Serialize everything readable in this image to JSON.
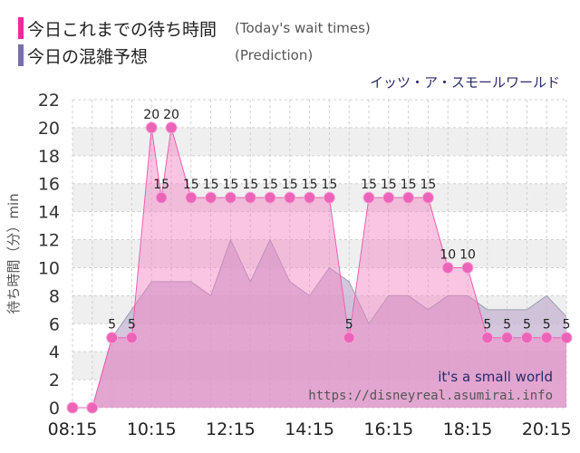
{
  "legend": {
    "today_label": "今日これまでの待ち時間",
    "today_note": "(Today's wait times)",
    "today_color": "#f0289a",
    "prediction_label": "今日の混雑予想",
    "prediction_note": "(Prediction)",
    "prediction_color": "#7a6fa8"
  },
  "attraction_name": "イッツ・ア・スモールワールド",
  "watermark": {
    "title": "it's a small world",
    "url": "https://disneyreal.asumirai.info"
  },
  "chart_data": {
    "type": "area",
    "ylabel": "待ち時間（分）min",
    "xlabel": "",
    "ylim": [
      0,
      22
    ],
    "yticks": [
      0,
      2,
      4,
      6,
      8,
      10,
      12,
      14,
      16,
      18,
      20,
      22
    ],
    "xlim": [
      "08:15",
      "20:45"
    ],
    "xtick_labels": [
      "08:15",
      "10:15",
      "12:15",
      "14:15",
      "16:15",
      "18:15",
      "20:15"
    ],
    "grid": true,
    "series": [
      {
        "name": "今日の混雑予想",
        "color": "#b9a3c9",
        "x": [
          "08:15",
          "08:45",
          "09:15",
          "09:45",
          "10:15",
          "10:45",
          "11:15",
          "11:45",
          "12:15",
          "12:45",
          "13:15",
          "13:45",
          "14:15",
          "14:45",
          "15:15",
          "15:45",
          "16:15",
          "16:45",
          "17:15",
          "17:45",
          "18:15",
          "18:45",
          "19:15",
          "19:45",
          "20:15",
          "20:45"
        ],
        "values": [
          0,
          0,
          5,
          7,
          9,
          9,
          9,
          8,
          12,
          9,
          12,
          9,
          8,
          10,
          9,
          6,
          8,
          8,
          7,
          8,
          8,
          7,
          7,
          7,
          8,
          6.5
        ]
      },
      {
        "name": "今日これまでの待ち時間",
        "color": "#f0289a",
        "x": [
          "08:15",
          "08:45",
          "09:15",
          "09:45",
          "10:15",
          "10:30",
          "10:45",
          "11:15",
          "11:45",
          "12:15",
          "12:45",
          "13:15",
          "13:45",
          "14:15",
          "14:45",
          "15:15",
          "15:45",
          "16:15",
          "16:45",
          "17:15",
          "17:45",
          "18:15",
          "18:45",
          "19:15",
          "19:45",
          "20:15",
          "20:45"
        ],
        "values": [
          0,
          0,
          5,
          5,
          20,
          15,
          20,
          15,
          15,
          15,
          15,
          15,
          15,
          15,
          15,
          5,
          15,
          15,
          15,
          15,
          10,
          10,
          5,
          5,
          5,
          5,
          5
        ]
      }
    ]
  }
}
